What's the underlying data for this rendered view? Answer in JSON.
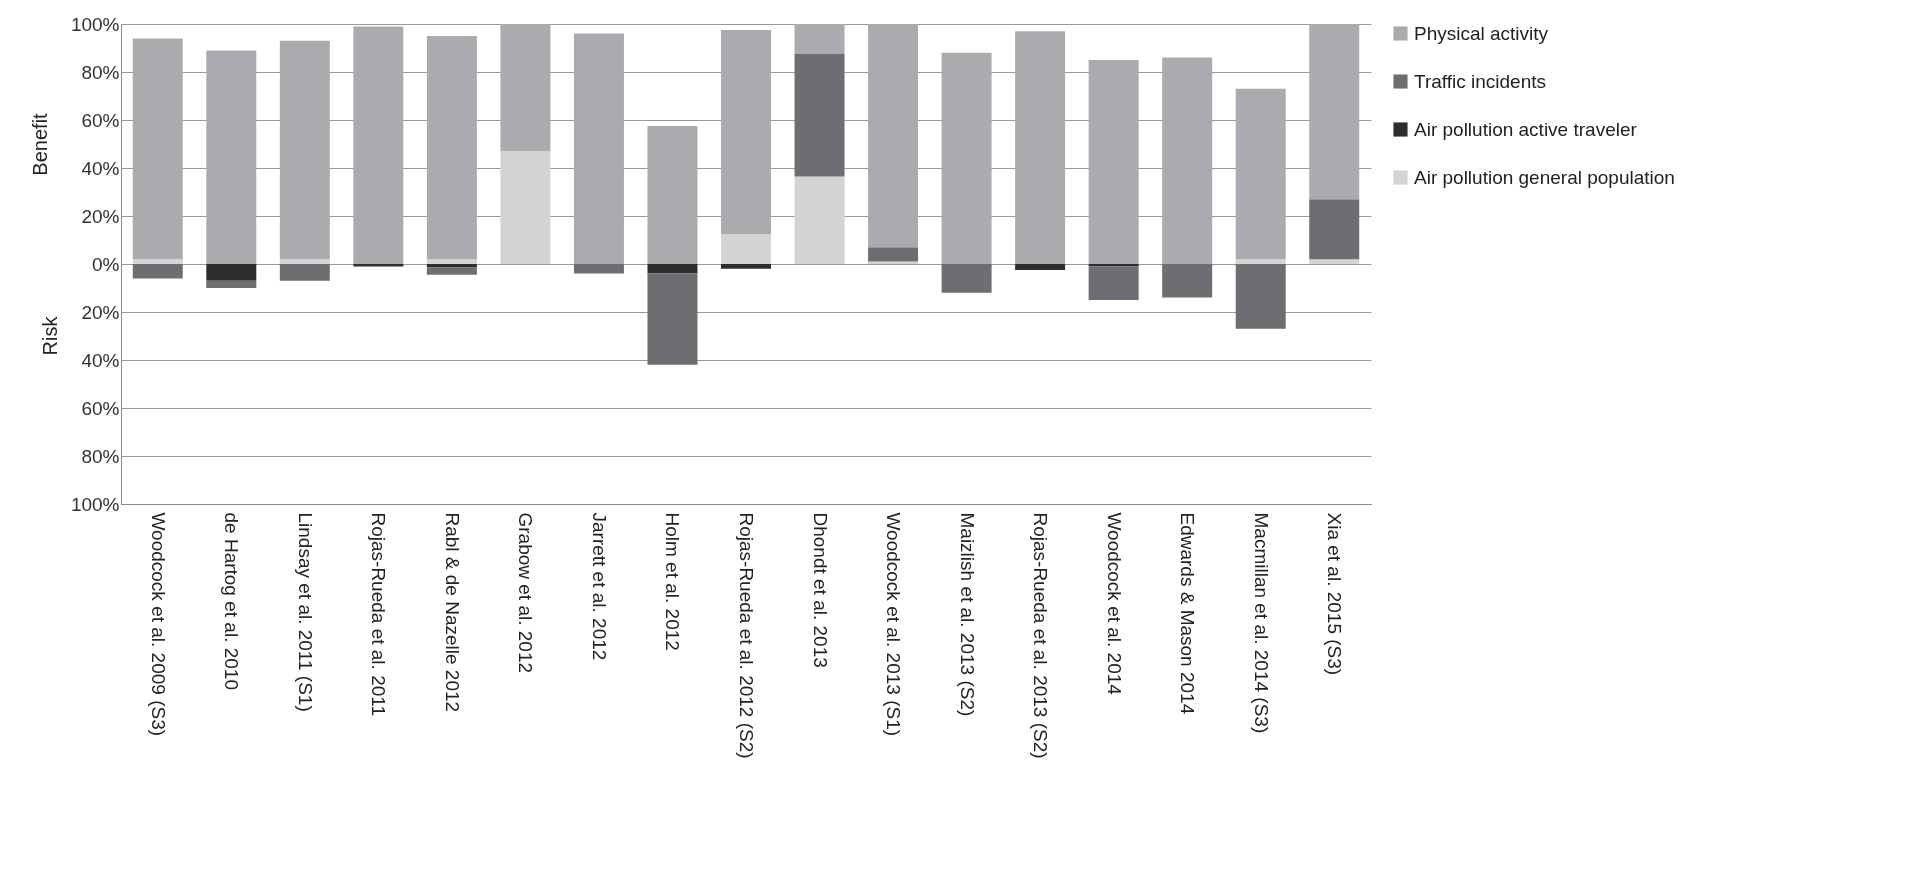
{
  "chart_data": {
    "type": "bar",
    "stacked": true,
    "ylabel": "Benefit",
    "annotations": [
      "Risk"
    ],
    "categories": [
      "Woodcock et al. 2009 (S3)",
      "de Hartog et al. 2010",
      "Lindsay et al. 2011 (S1)",
      "Rojas-Rueda et al. 2011",
      "Rabl & de Nazelle 2012",
      "Grabow et al. 2012",
      "Jarrett et al. 2012",
      "Holm et al. 2012",
      "Rojas-Rueda et al. 2012 (S2)",
      "Dhondt et al. 2013",
      "Woodcock et al. 2013 (S1)",
      "Maizlish et al. 2013 (S2)",
      "Rojas-Rueda et al. 2013 (S2)",
      "Woodcock et al. 2014",
      "Edwards & Mason 2014",
      "Macmillan et al. 2014 (S3)",
      "Xia et al. 2015 (S3)"
    ],
    "series": [
      {
        "name": "Air pollution general population",
        "color": "#d4d4d4",
        "values": [
          2,
          null,
          2,
          null,
          2,
          47,
          null,
          null,
          12.5,
          36.5,
          1,
          null,
          null,
          null,
          null,
          2,
          2
        ]
      },
      {
        "name": "Air pollution active traveler",
        "color": "#2e2e2e",
        "values": [
          null,
          -7,
          null,
          -1,
          -1.5,
          null,
          null,
          -4,
          -2,
          null,
          null,
          null,
          -2.5,
          -1,
          null,
          null,
          null
        ]
      },
      {
        "name": "Traffic incidents",
        "color": "#6d6e71",
        "values": [
          -6,
          -3,
          -7,
          null,
          -3,
          null,
          -4,
          -38,
          null,
          51,
          6,
          -12,
          null,
          -14,
          -14,
          -27,
          25
        ]
      },
      {
        "name": "Physical activity",
        "color": "#aaabae",
        "values": [
          92,
          89,
          91,
          99,
          93,
          53,
          96,
          57.5,
          85,
          12.5,
          93,
          88,
          97,
          85,
          86,
          71,
          73
        ]
      }
    ],
    "ylim": [
      -100,
      100
    ],
    "yticks": [
      {
        "value": -100,
        "label": "100%"
      },
      {
        "value": -80,
        "label": "80%"
      },
      {
        "value": -60,
        "label": "60%"
      },
      {
        "value": -40,
        "label": "40%"
      },
      {
        "value": -20,
        "label": "20%"
      },
      {
        "value": 0,
        "label": "0%"
      },
      {
        "value": 20,
        "label": "20%"
      },
      {
        "value": 40,
        "label": "40%"
      },
      {
        "value": 60,
        "label": "60%"
      },
      {
        "value": 80,
        "label": "80%"
      },
      {
        "value": 100,
        "label": "100%"
      }
    ],
    "grid": "y",
    "legend": "right"
  }
}
